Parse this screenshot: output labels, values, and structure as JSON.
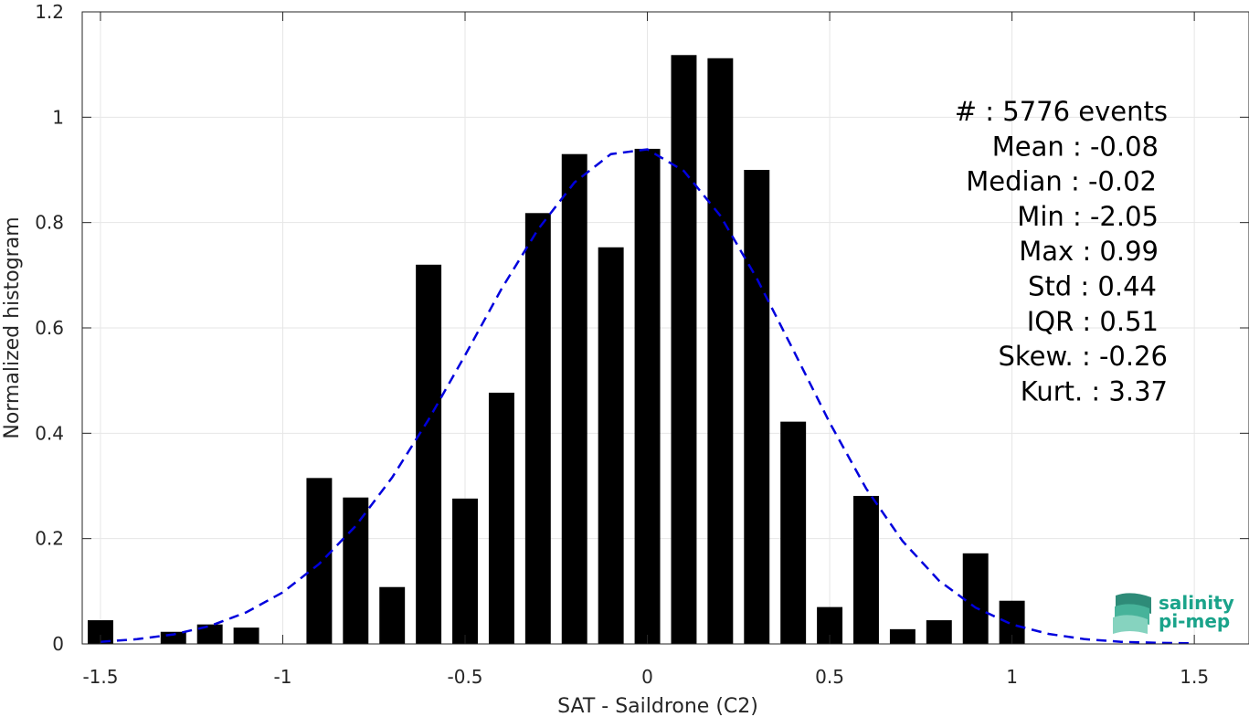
{
  "chart_data": {
    "type": "bar",
    "xlabel": "SAT - Saildrone (C2)",
    "ylabel": "Normalized histogram",
    "xlim": [
      -1.55,
      1.65
    ],
    "ylim": [
      0,
      1.2
    ],
    "xticks": [
      -1.5,
      -1,
      -0.5,
      0,
      0.5,
      1,
      1.5
    ],
    "xtick_labels": [
      "-1.5",
      "-1",
      "-0.5",
      "0",
      "0.5",
      "1",
      "1.5"
    ],
    "yticks": [
      0,
      0.2,
      0.4,
      0.6,
      0.8,
      1,
      1.2
    ],
    "ytick_labels": [
      "0",
      "0.2",
      "0.4",
      "0.6",
      "0.8",
      "1",
      "1.2"
    ],
    "grid": true,
    "bar_color": "#000000",
    "bar_width": 0.07,
    "bars": {
      "x": [
        -1.5,
        -1.3,
        -1.2,
        -1.1,
        -0.9,
        -0.8,
        -0.7,
        -0.6,
        -0.5,
        -0.4,
        -0.3,
        -0.2,
        -0.1,
        0.0,
        0.1,
        0.2,
        0.3,
        0.4,
        0.5,
        0.6,
        0.7,
        0.8,
        0.9,
        1.0
      ],
      "values": [
        0.045,
        0.023,
        0.037,
        0.031,
        0.315,
        0.278,
        0.108,
        0.72,
        0.276,
        0.477,
        0.818,
        0.93,
        0.753,
        0.94,
        1.118,
        1.112,
        0.9,
        0.422,
        0.07,
        0.281,
        0.028,
        0.045,
        0.172,
        0.082
      ]
    },
    "fit_curve": {
      "style": "dashed",
      "color": "#0000dd",
      "x": [
        -1.5,
        -1.4,
        -1.3,
        -1.2,
        -1.1,
        -1.0,
        -0.9,
        -0.8,
        -0.7,
        -0.6,
        -0.5,
        -0.4,
        -0.3,
        -0.2,
        -0.1,
        0.0,
        0.1,
        0.2,
        0.3,
        0.4,
        0.5,
        0.6,
        0.7,
        0.8,
        0.9,
        1.0,
        1.1,
        1.2,
        1.3,
        1.4,
        1.5
      ],
      "y": [
        0.004,
        0.009,
        0.018,
        0.034,
        0.06,
        0.098,
        0.152,
        0.224,
        0.316,
        0.426,
        0.548,
        0.674,
        0.787,
        0.876,
        0.93,
        0.939,
        0.898,
        0.813,
        0.694,
        0.558,
        0.42,
        0.295,
        0.195,
        0.12,
        0.069,
        0.037,
        0.019,
        0.009,
        0.004,
        0.002,
        0.001
      ]
    },
    "annotation_lines": [
      "#  : 5776 events",
      "Mean : -0.08",
      "Median : -0.02",
      "Min : -2.05",
      "Max : 0.99",
      "Std : 0.44",
      "IQR : 0.51",
      "Skew. : -0.26",
      "Kurt. : 3.37"
    ],
    "logo": {
      "line1": "salinity",
      "line2": "pi-mep",
      "color": "#1aa38a",
      "icon": "waves-icon"
    }
  }
}
